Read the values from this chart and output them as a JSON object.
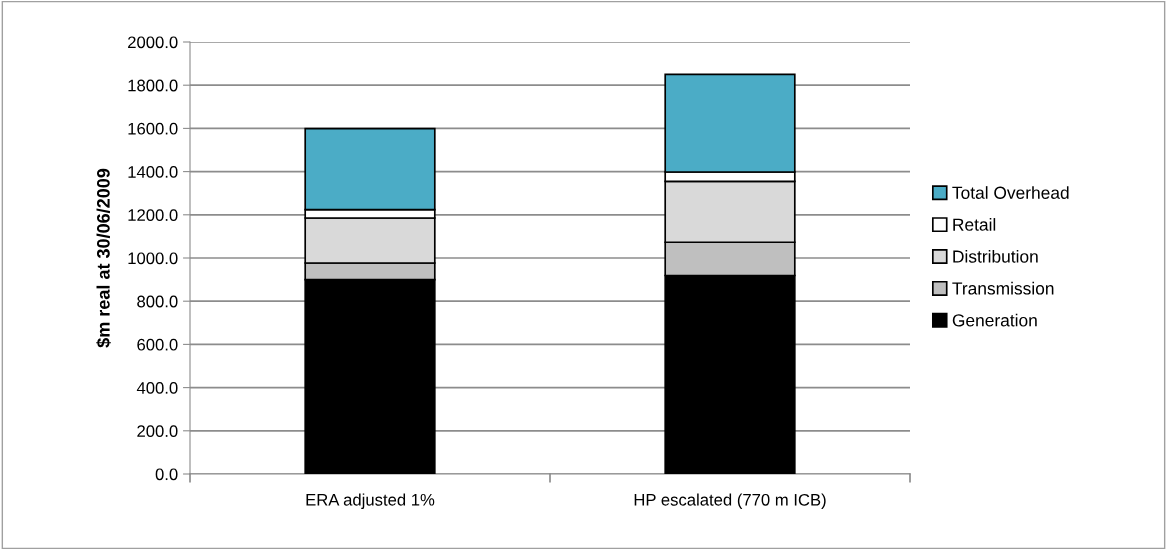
{
  "chart_data": {
    "type": "bar",
    "stacked": true,
    "ylabel": "$m real at 30/06/2009",
    "categories": [
      "ERA adjusted 1%",
      "HP escalated (770 m ICB)"
    ],
    "series": [
      {
        "name": "Generation",
        "color": "#000000",
        "values": [
          900,
          919
        ]
      },
      {
        "name": "Transmission",
        "color": "#bfbfbf",
        "values": [
          77,
          154
        ]
      },
      {
        "name": "Distribution",
        "color": "#d9d9d9",
        "values": [
          208,
          282
        ]
      },
      {
        "name": "Retail",
        "color": "#ffffff",
        "values": [
          39,
          43
        ]
      },
      {
        "name": "Total Overhead",
        "color": "#4bacc6",
        "values": [
          375,
          452
        ]
      }
    ],
    "ylim": [
      0,
      2000
    ],
    "yticks": [
      {
        "value": 0,
        "label": "0.0"
      },
      {
        "value": 200,
        "label": "200.0"
      },
      {
        "value": 400,
        "label": "400.0"
      },
      {
        "value": 600,
        "label": "600.0"
      },
      {
        "value": 800,
        "label": "800.0"
      },
      {
        "value": 1000,
        "label": "1000.0"
      },
      {
        "value": 1200,
        "label": "1200.0"
      },
      {
        "value": 1400,
        "label": "1400.0"
      },
      {
        "value": 1600,
        "label": "1600.0"
      },
      {
        "value": 1800,
        "label": "1800.0"
      },
      {
        "value": 2000,
        "label": "2000.0"
      }
    ],
    "grid": "y",
    "legend": "right"
  }
}
